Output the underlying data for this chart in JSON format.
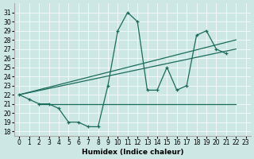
{
  "xlabel": "Humidex (Indice chaleur)",
  "background_color": "#cde8e4",
  "line_color": "#1a6b5a",
  "xlim": [
    -0.5,
    23.5
  ],
  "ylim": [
    17.5,
    32.0
  ],
  "yticks": [
    18,
    19,
    20,
    21,
    22,
    23,
    24,
    25,
    26,
    27,
    28,
    29,
    30,
    31
  ],
  "xticks": [
    0,
    1,
    2,
    3,
    4,
    5,
    6,
    7,
    8,
    9,
    10,
    11,
    12,
    13,
    14,
    15,
    16,
    17,
    18,
    19,
    20,
    21,
    22,
    23
  ],
  "line1_x": [
    0,
    1,
    2,
    3,
    4,
    5,
    6,
    7,
    8,
    9,
    10,
    11,
    12,
    13,
    14,
    15,
    16,
    17,
    18,
    19,
    20,
    21
  ],
  "line1_y": [
    22,
    21.5,
    21,
    21,
    20.5,
    19,
    19,
    18.5,
    18.5,
    23,
    29,
    31,
    30,
    22.5,
    22.5,
    25,
    22.5,
    23,
    28.5,
    29,
    27,
    26.5
  ],
  "line2_x": [
    2,
    3,
    4,
    5,
    6,
    7,
    8,
    9,
    10,
    11,
    12,
    13,
    14,
    15,
    16,
    17,
    18,
    19,
    20,
    21,
    22
  ],
  "line2_y": [
    21,
    21,
    21,
    21,
    21,
    21,
    21,
    21,
    21,
    21,
    21,
    21,
    21,
    21,
    21,
    21,
    21,
    21,
    21,
    21,
    21
  ],
  "line3_x": [
    0,
    22
  ],
  "line3_y": [
    22,
    28
  ],
  "line4_x": [
    0,
    22
  ],
  "line4_y": [
    22,
    27
  ]
}
